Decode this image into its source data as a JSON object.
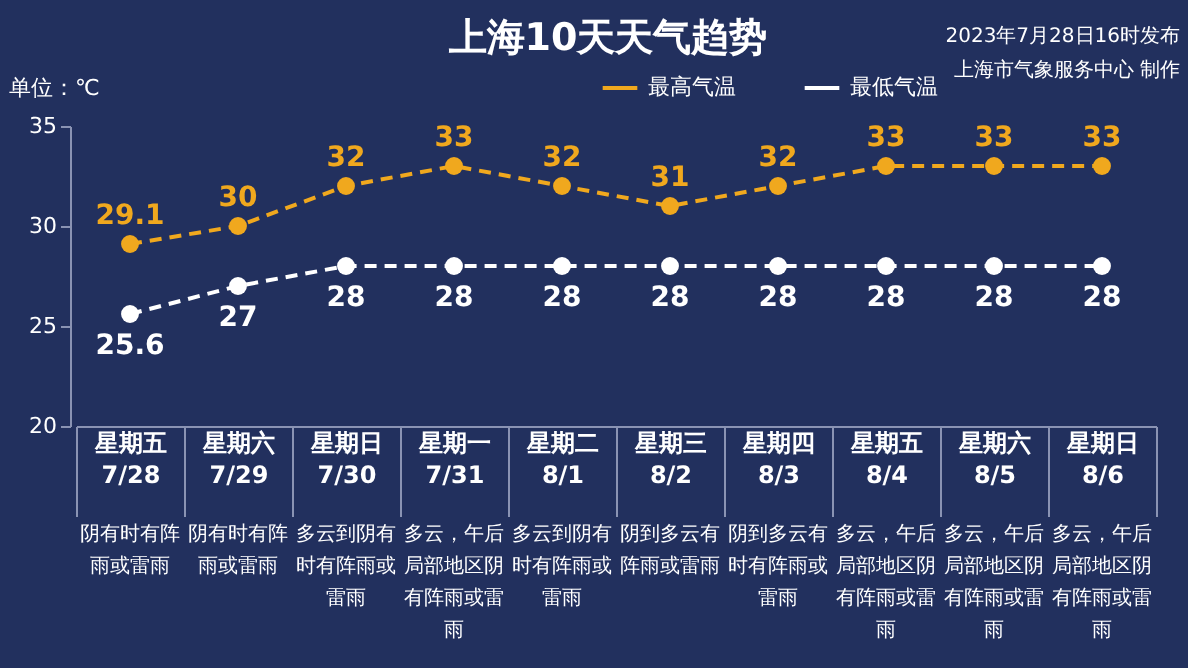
{
  "chart_data": {
    "type": "line",
    "title": "上海10天天气趋势",
    "ylabel": "单位：℃",
    "categories": [
      "星期五\n7/28",
      "星期六\n7/29",
      "星期日\n7/30",
      "星期一\n7/31",
      "星期二\n8/1",
      "星期三\n8/2",
      "星期四\n8/3",
      "星期五\n8/4",
      "星期六\n8/5",
      "星期日\n8/6"
    ],
    "series": [
      {
        "name": "最高气温",
        "color": "#f0a81e",
        "values": [
          29.1,
          30,
          32,
          33,
          32,
          31,
          32,
          33,
          33,
          33
        ]
      },
      {
        "name": "最低气温",
        "color": "#ffffff",
        "values": [
          25.6,
          27,
          28,
          28,
          28,
          28,
          28,
          28,
          28,
          28
        ]
      }
    ],
    "ylim": [
      20,
      35
    ],
    "yticks": [
      20,
      25,
      30,
      35
    ],
    "grid": false,
    "legend": "top",
    "marker": "circle",
    "line_style": "dashed",
    "data_labels": true,
    "annotations": [
      "2023年7月28日16时发布",
      "上海市气象服务中心 制作",
      "阴有时有阵雨或雷雨",
      "阴有时有阵雨或雷雨",
      "多云到阴有时有阵雨或雷雨",
      "多云，午后局部地区阴有阵雨或雷雨",
      "多云到阴有时有阵雨或雷雨",
      "阴到多云有阵雨或雷雨",
      "阴到多云有时有阵雨或雷雨",
      "多云，午后局部地区阴有阵雨或雷雨",
      "多云，午后局部地区阴有阵雨或雷雨",
      "多云，午后局部地区阴有阵雨或雷雨"
    ]
  }
}
